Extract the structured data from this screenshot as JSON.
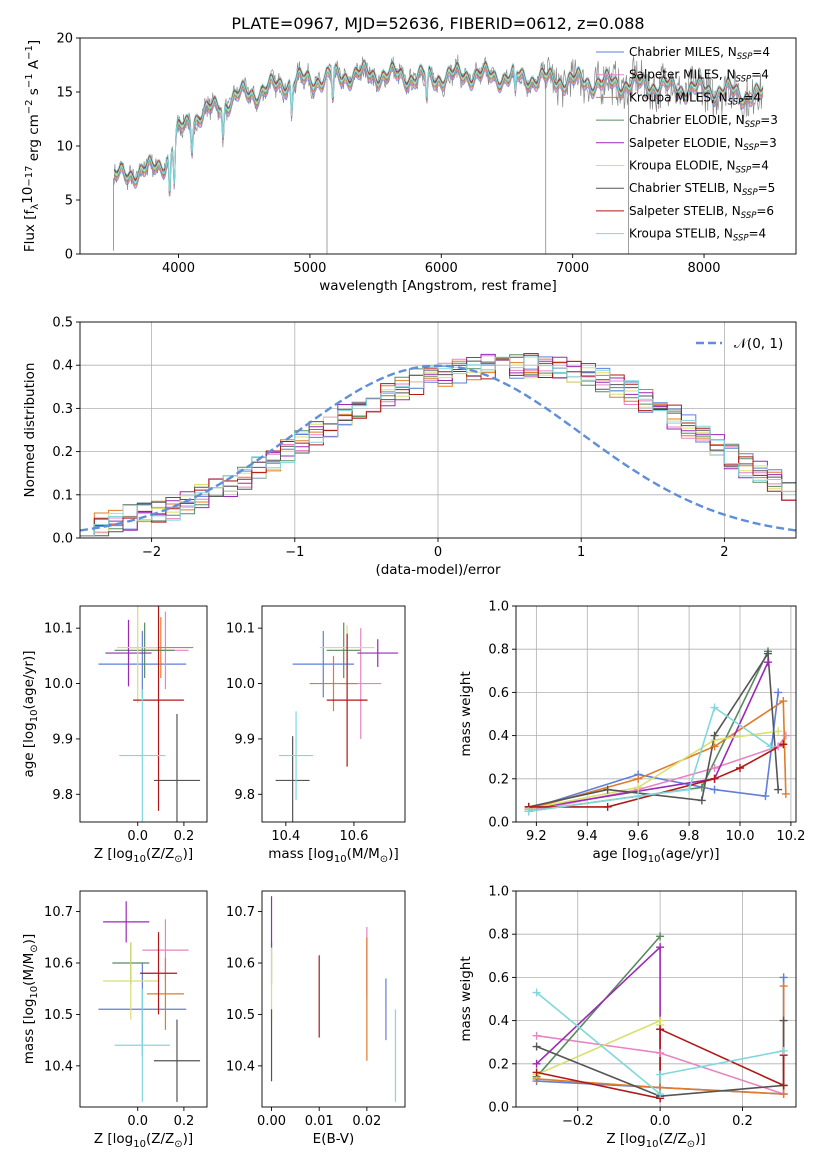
{
  "title": "PLATE=0967, MJD=52636, FIBERID=0612, z=0.088",
  "colors": {
    "Chabrier MILES": "#5f7fd9",
    "Salpeter MILES": "#e883c4",
    "Kroupa MILES": "#e07b29",
    "Chabrier ELODIE": "#5a8a60",
    "Salpeter ELODIE": "#9a2ab5",
    "Kroupa ELODIE": "#d8e070",
    "Chabrier STELIB": "#555555",
    "Salpeter STELIB": "#b01818",
    "Kroupa STELIB": "#80d8dc",
    "data": "#888888",
    "normal": "#5f8fd9"
  },
  "chart_data": [
    {
      "id": "spectrum",
      "type": "line",
      "xlabel": "wavelength [Angstrom, rest frame]",
      "ylabel": "Flux [f$_\\lambda$10$^{-17}$ erg cm$^{-2}$ s$^{-1}$ A$^{-1}$]",
      "ylabel_parts": {
        "base": "Flux [f",
        "s1": "λ",
        "t1": "10",
        "s2": "−17",
        "t2": " erg cm",
        "s3": "−2",
        "t3": " s",
        "s4": "−1",
        "t4": " A",
        "s5": "−1",
        "t5": "]"
      },
      "xlim": [
        3250,
        8700
      ],
      "ylim": [
        0,
        20
      ],
      "xticks": [
        4000,
        5000,
        6000,
        7000,
        8000
      ],
      "yticks": [
        0,
        5,
        10,
        15,
        20
      ],
      "legend": {
        "position": "upper right",
        "entries": [
          {
            "name": "Chabrier MILES",
            "nssp": "4"
          },
          {
            "name": "Salpeter MILES",
            "nssp": "4"
          },
          {
            "name": "Kroupa MILES",
            "nssp": "4"
          },
          {
            "name": "Chabrier ELODIE",
            "nssp": "3"
          },
          {
            "name": "Salpeter ELODIE",
            "nssp": "3"
          },
          {
            "name": "Kroupa ELODIE",
            "nssp": "4"
          },
          {
            "name": "Chabrier STELIB",
            "nssp": "5"
          },
          {
            "name": "Salpeter STELIB",
            "nssp": "6"
          },
          {
            "name": "Kroupa STELIB",
            "nssp": "4"
          }
        ]
      },
      "continuum": {
        "x": [
          3500,
          3600,
          3700,
          3800,
          3900,
          4000,
          4100,
          4200,
          4300,
          4400,
          4500,
          4600,
          4700,
          4800,
          4900,
          5000,
          5200,
          5400,
          5600,
          5800,
          6000,
          6200,
          6400,
          6600,
          6800,
          7000,
          7200,
          7400,
          7600,
          7800,
          8000,
          8200,
          8400
        ],
        "y": [
          7.0,
          7.3,
          7.6,
          7.8,
          8.5,
          11.2,
          12.5,
          13.0,
          13.6,
          14.2,
          14.8,
          14.9,
          15.3,
          15.8,
          16.0,
          16.0,
          16.4,
          16.6,
          16.5,
          16.3,
          16.3,
          16.6,
          16.4,
          16.3,
          16.1,
          16.0,
          15.8,
          15.7,
          15.6,
          15.3,
          15.2,
          15.0,
          14.6
        ]
      }
    },
    {
      "id": "residual-histogram",
      "type": "bar",
      "xlabel": "(data-model)/error",
      "ylabel": "Normed distribution",
      "xlim": [
        -2.5,
        2.5
      ],
      "ylim": [
        0,
        0.5
      ],
      "xticks": [
        -2,
        -1,
        0,
        1,
        2
      ],
      "yticks": [
        0.0,
        0.1,
        0.2,
        0.3,
        0.4,
        0.5
      ],
      "grid": true,
      "legend": {
        "position": "upper right",
        "entries": [
          {
            "name": "𝒩(0, 1)",
            "style": "dashed"
          }
        ]
      },
      "bins": {
        "start": -2.5,
        "width": 0.1
      },
      "series_values": [
        0.02,
        0.03,
        0.04,
        0.048,
        0.055,
        0.062,
        0.07,
        0.085,
        0.098,
        0.11,
        0.125,
        0.142,
        0.16,
        0.18,
        0.2,
        0.22,
        0.24,
        0.26,
        0.28,
        0.3,
        0.318,
        0.335,
        0.35,
        0.362,
        0.372,
        0.38,
        0.388,
        0.393,
        0.396,
        0.398,
        0.399,
        0.398,
        0.396,
        0.392,
        0.385,
        0.376,
        0.365,
        0.352,
        0.337,
        0.32,
        0.3,
        0.28,
        0.258,
        0.235,
        0.212,
        0.19,
        0.168,
        0.148,
        0.128,
        0.11,
        0.095
      ]
    },
    {
      "id": "age-vs-Z",
      "type": "scatter",
      "xlabel": "Z [log$_{10}$(Z/Z$_\\odot$)]",
      "ylabel": "age  [log$_{10}$(age/yr)]",
      "xlim": [
        -0.25,
        0.3
      ],
      "ylim": [
        9.75,
        10.14
      ],
      "xticks": [
        0.0,
        0.2
      ],
      "yticks": [
        9.8,
        9.9,
        10.0,
        10.1
      ],
      "points": [
        {
          "model": "Chabrier MILES",
          "x": 0.02,
          "xerr": 0.19,
          "y": 10.035,
          "yerr": 0.06
        },
        {
          "model": "Salpeter MILES",
          "x": 0.12,
          "xerr": 0.1,
          "y": 10.06,
          "yerr": 0.07
        },
        {
          "model": "Kroupa MILES",
          "x": 0.1,
          "xerr": 0.14,
          "y": 10.065,
          "yerr": 0.055
        },
        {
          "model": "Chabrier ELODIE",
          "x": 0.03,
          "xerr": 0.13,
          "y": 10.06,
          "yerr": 0.05
        },
        {
          "model": "Salpeter ELODIE",
          "x": -0.04,
          "xerr": 0.1,
          "y": 10.055,
          "yerr": 0.06
        },
        {
          "model": "Kroupa ELODIE",
          "x": 0.0,
          "xerr": 0.09,
          "y": 10.065,
          "yerr": 0.1
        },
        {
          "model": "Chabrier STELIB",
          "x": 0.17,
          "xerr": 0.1,
          "y": 9.825,
          "yerr": 0.12
        },
        {
          "model": "Salpeter STELIB",
          "x": 0.09,
          "xerr": 0.11,
          "y": 9.97,
          "yerr": 0.2
        },
        {
          "model": "Kroupa STELIB",
          "x": 0.02,
          "xerr": 0.1,
          "y": 9.87,
          "yerr": 0.12
        }
      ]
    },
    {
      "id": "age-vs-mass",
      "type": "scatter",
      "xlabel": "mass [log$_{10}$(M/M$_\\odot$)]",
      "ylabel": "",
      "xlim": [
        10.33,
        10.75
      ],
      "ylim": [
        9.75,
        10.14
      ],
      "xticks": [
        10.4,
        10.6
      ],
      "yticks": [
        9.8,
        9.9,
        10.0,
        10.1
      ],
      "points": [
        {
          "model": "Chabrier MILES",
          "x": 10.51,
          "xerr": 0.09,
          "y": 10.035,
          "yerr": 0.06
        },
        {
          "model": "Salpeter MILES",
          "x": 10.62,
          "xerr": 0.06,
          "y": 10.0,
          "yerr": 0.1
        },
        {
          "model": "Kroupa MILES",
          "x": 10.54,
          "xerr": 0.07,
          "y": 10.0,
          "yerr": 0.05
        },
        {
          "model": "Chabrier ELODIE",
          "x": 10.57,
          "xerr": 0.05,
          "y": 10.06,
          "yerr": 0.05
        },
        {
          "model": "Salpeter ELODIE",
          "x": 10.67,
          "xerr": 0.06,
          "y": 10.055,
          "yerr": 0.025
        },
        {
          "model": "Kroupa ELODIE",
          "x": 10.58,
          "xerr": 0.08,
          "y": 10.065,
          "yerr": 0.04
        },
        {
          "model": "Chabrier STELIB",
          "x": 10.42,
          "xerr": 0.05,
          "y": 9.825,
          "yerr": 0.08
        },
        {
          "model": "Salpeter STELIB",
          "x": 10.58,
          "xerr": 0.06,
          "y": 9.97,
          "yerr": 0.12
        },
        {
          "model": "Kroupa STELIB",
          "x": 10.43,
          "xerr": 0.05,
          "y": 9.87,
          "yerr": 0.08
        }
      ]
    },
    {
      "id": "weight-vs-age",
      "type": "line",
      "xlabel": "age  [log$_{10}$(age/yr)]",
      "ylabel": "mass weight",
      "xlim": [
        9.12,
        10.22
      ],
      "ylim": [
        0,
        1.0
      ],
      "xticks": [
        9.2,
        9.4,
        9.6,
        9.8,
        10.0,
        10.2
      ],
      "yticks": [
        0.0,
        0.2,
        0.4,
        0.6,
        0.8,
        1.0
      ],
      "grid": true,
      "series": [
        {
          "model": "Chabrier MILES",
          "x": [
            9.17,
            9.6,
            9.9,
            10.1,
            10.15
          ],
          "y": [
            0.06,
            0.22,
            0.15,
            0.12,
            0.6
          ]
        },
        {
          "model": "Salpeter MILES",
          "x": [
            9.17,
            9.6,
            9.9,
            10.15,
            10.18
          ],
          "y": [
            0.05,
            0.15,
            0.25,
            0.35,
            0.4
          ]
        },
        {
          "model": "Kroupa MILES",
          "x": [
            9.17,
            9.6,
            9.9,
            10.17,
            10.18
          ],
          "y": [
            0.06,
            0.2,
            0.35,
            0.56,
            0.13
          ]
        },
        {
          "model": "Chabrier ELODIE",
          "x": [
            9.17,
            9.85,
            10.11
          ],
          "y": [
            0.05,
            0.16,
            0.79
          ]
        },
        {
          "model": "Salpeter ELODIE",
          "x": [
            9.17,
            9.9,
            10.11
          ],
          "y": [
            0.06,
            0.2,
            0.74
          ]
        },
        {
          "model": "Kroupa ELODIE",
          "x": [
            9.17,
            9.6,
            9.9,
            10.15
          ],
          "y": [
            0.06,
            0.16,
            0.38,
            0.42
          ]
        },
        {
          "model": "Chabrier STELIB",
          "x": [
            9.17,
            9.48,
            9.85,
            9.9,
            10.11,
            10.15
          ],
          "y": [
            0.07,
            0.15,
            0.1,
            0.4,
            0.78,
            0.15
          ]
        },
        {
          "model": "Salpeter STELIB",
          "x": [
            9.17,
            9.48,
            9.9,
            10.0,
            10.17
          ],
          "y": [
            0.07,
            0.07,
            0.2,
            0.25,
            0.36
          ]
        },
        {
          "model": "Kroupa STELIB",
          "x": [
            9.17,
            9.6,
            9.8,
            9.9,
            10.12
          ],
          "y": [
            0.05,
            0.12,
            0.15,
            0.53,
            0.35
          ]
        }
      ]
    },
    {
      "id": "mass-vs-Z",
      "type": "scatter",
      "xlabel": "Z [log$_{10}$(Z/Z$_\\odot$)]",
      "ylabel": "mass [log$_{10}$(M/M$_\\odot$)]",
      "xlim": [
        -0.25,
        0.3
      ],
      "ylim": [
        10.32,
        10.74
      ],
      "xticks": [
        0.0,
        0.2
      ],
      "yticks": [
        10.4,
        10.5,
        10.6,
        10.7
      ],
      "points": [
        {
          "model": "Chabrier MILES",
          "x": 0.02,
          "xerr": 0.19,
          "y": 10.51,
          "yerr": 0.09
        },
        {
          "model": "Salpeter MILES",
          "x": 0.12,
          "xerr": 0.1,
          "y": 10.625,
          "yerr": 0.06
        },
        {
          "model": "Kroupa MILES",
          "x": 0.12,
          "xerr": 0.08,
          "y": 10.54,
          "yerr": 0.07
        },
        {
          "model": "Chabrier ELODIE",
          "x": -0.03,
          "xerr": 0.08,
          "y": 10.6,
          "yerr": 0.04
        },
        {
          "model": "Salpeter ELODIE",
          "x": -0.05,
          "xerr": 0.1,
          "y": 10.68,
          "yerr": 0.04
        },
        {
          "model": "Kroupa ELODIE",
          "x": -0.03,
          "xerr": 0.12,
          "y": 10.565,
          "yerr": 0.075
        },
        {
          "model": "Chabrier STELIB",
          "x": 0.17,
          "xerr": 0.1,
          "y": 10.41,
          "yerr": 0.08
        },
        {
          "model": "Salpeter STELIB",
          "x": 0.09,
          "xerr": 0.08,
          "y": 10.58,
          "yerr": 0.08
        },
        {
          "model": "Kroupa STELIB",
          "x": 0.02,
          "xerr": 0.12,
          "y": 10.44,
          "yerr": 0.11
        }
      ]
    },
    {
      "id": "mass-vs-EBV",
      "type": "scatter",
      "xlabel": "E(B-V)",
      "ylabel": "",
      "xlim": [
        -0.002,
        0.028
      ],
      "ylim": [
        10.32,
        10.74
      ],
      "xticks": [
        0.0,
        0.01,
        0.02
      ],
      "yticks": [
        10.4,
        10.5,
        10.6,
        10.7
      ],
      "points": [
        {
          "model": "Chabrier MILES",
          "x": 0.024,
          "y": 10.51,
          "yerr": 0.06
        },
        {
          "model": "Salpeter MILES",
          "x": 0.02,
          "y": 10.6,
          "yerr": 0.07
        },
        {
          "model": "Kroupa MILES",
          "x": 0.02,
          "y": 10.53,
          "yerr": 0.12
        },
        {
          "model": "Chabrier ELODIE",
          "x": 0.0,
          "y": 10.6,
          "yerr": 0.04
        },
        {
          "model": "Salpeter ELODIE",
          "x": 0.0,
          "y": 10.68,
          "yerr": 0.05
        },
        {
          "model": "Kroupa ELODIE",
          "x": 0.0,
          "y": 10.56,
          "yerr": 0.07
        },
        {
          "model": "Chabrier STELIB",
          "x": 0.0,
          "y": 10.44,
          "yerr": 0.07
        },
        {
          "model": "Salpeter STELIB",
          "x": 0.01,
          "y": 10.535,
          "yerr": 0.08
        },
        {
          "model": "Kroupa STELIB",
          "x": 0.026,
          "y": 10.42,
          "yerr": 0.09
        }
      ]
    },
    {
      "id": "weight-vs-Z",
      "type": "line",
      "xlabel": "Z [log$_{10}$(Z/Z$_\\odot$)]",
      "ylabel": "mass weight",
      "xlim": [
        -0.35,
        0.33
      ],
      "ylim": [
        0,
        1.0
      ],
      "xticks": [
        -0.2,
        0.0,
        0.2
      ],
      "yticks": [
        0.0,
        0.2,
        0.4,
        0.6,
        0.8,
        1.0
      ],
      "grid": true,
      "series": [
        {
          "model": "Chabrier MILES",
          "x": [
            -0.3,
            0.0,
            0.3,
            0.3
          ],
          "y": [
            0.12,
            0.09,
            0.06,
            0.6
          ]
        },
        {
          "model": "Salpeter MILES",
          "x": [
            -0.3,
            0.0,
            0.3
          ],
          "y": [
            0.33,
            0.25,
            0.06
          ]
        },
        {
          "model": "Kroupa MILES",
          "x": [
            -0.3,
            0.0,
            0.3,
            0.3
          ],
          "y": [
            0.13,
            0.09,
            0.06,
            0.56
          ]
        },
        {
          "model": "Chabrier ELODIE",
          "x": [
            -0.3,
            0.0
          ],
          "y": [
            0.14,
            0.79
          ]
        },
        {
          "model": "Salpeter ELODIE",
          "x": [
            -0.3,
            0.0,
            0.0
          ],
          "y": [
            0.2,
            0.74,
            0.05
          ]
        },
        {
          "model": "Kroupa ELODIE",
          "x": [
            -0.3,
            0.0,
            0.0
          ],
          "y": [
            0.15,
            0.4,
            0.38
          ]
        },
        {
          "model": "Chabrier STELIB",
          "x": [
            -0.3,
            0.0,
            0.3,
            0.3
          ],
          "y": [
            0.28,
            0.05,
            0.1,
            0.4
          ]
        },
        {
          "model": "Salpeter STELIB",
          "x": [
            -0.3,
            0.0,
            0.0,
            0.3,
            0.3
          ],
          "y": [
            0.16,
            0.04,
            0.36,
            0.1,
            0.24
          ]
        },
        {
          "model": "Kroupa STELIB",
          "x": [
            -0.3,
            0.0,
            0.0,
            0.3
          ],
          "y": [
            0.53,
            0.06,
            0.15,
            0.26
          ]
        }
      ]
    }
  ]
}
